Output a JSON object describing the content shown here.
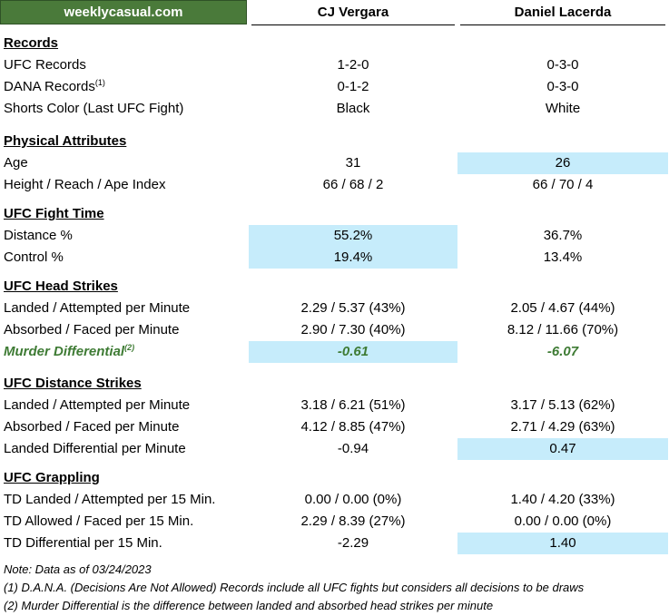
{
  "brand": "weeklycasual.com",
  "fighters": [
    "CJ Vergara",
    "Daniel Lacerda"
  ],
  "sections": [
    {
      "title": "Records",
      "rows": [
        {
          "label": "UFC Records",
          "a": "1-2-0",
          "b": "0-3-0"
        },
        {
          "label": "DANA Records",
          "sup": "(1)",
          "a": "0-1-2",
          "b": "0-3-0"
        },
        {
          "label": "Shorts Color (Last UFC Fight)",
          "a": "Black",
          "b": "White"
        }
      ]
    },
    {
      "title": "Physical Attributes",
      "rows": [
        {
          "label": "Age",
          "a": "31",
          "b": "26",
          "highlight": "b"
        },
        {
          "label": "Height / Reach / Ape Index",
          "a": "66 / 68 / 2",
          "b": "66 / 70 / 4"
        }
      ]
    },
    {
      "title": "UFC Fight Time",
      "rows": [
        {
          "label": "Distance %",
          "a": "55.2%",
          "b": "36.7%",
          "highlight": "a"
        },
        {
          "label": "Control %",
          "a": "19.4%",
          "b": "13.4%",
          "highlight": "a"
        }
      ]
    },
    {
      "title": "UFC Head Strikes",
      "rows": [
        {
          "label": "Landed / Attempted per Minute",
          "a": "2.29 / 5.37 (43%)",
          "b": "2.05 / 4.67 (44%)"
        },
        {
          "label": "Absorbed / Faced per Minute",
          "a": "2.90 / 7.30 (40%)",
          "b": "8.12 / 11.66 (70%)"
        },
        {
          "label": "Murder Differential",
          "sup": "(2)",
          "a": "-0.61",
          "b": "-6.07",
          "highlight": "a",
          "style": "murder"
        }
      ]
    },
    {
      "title": "UFC Distance Strikes",
      "rows": [
        {
          "label": "Landed / Attempted per Minute",
          "a": "3.18 / 6.21 (51%)",
          "b": "3.17 / 5.13 (62%)"
        },
        {
          "label": "Absorbed / Faced per Minute",
          "a": "4.12 / 8.85 (47%)",
          "b": "2.71 / 4.29 (63%)"
        },
        {
          "label": "Landed Differential per Minute",
          "a": "-0.94",
          "b": "0.47",
          "highlight": "b"
        }
      ]
    },
    {
      "title": "UFC Grappling",
      "rows": [
        {
          "label": "TD Landed / Attempted per 15 Min.",
          "a": "0.00 / 0.00 (0%)",
          "b": "1.40 / 4.20 (33%)"
        },
        {
          "label": "TD Allowed / Faced per 15 Min.",
          "a": "2.29 / 8.39 (27%)",
          "b": "0.00 / 0.00 (0%)"
        },
        {
          "label": "TD Differential per 15 Min.",
          "a": "-2.29",
          "b": "1.40",
          "highlight": "b"
        }
      ]
    }
  ],
  "notes": [
    "Note: Data as of 03/24/2023",
    "(1) D.A.N.A. (Decisions Are Not Allowed) Records include all UFC fights but considers all decisions to be draws",
    "(2) Murder Differential is the difference between landed and absorbed head strikes per minute"
  ],
  "colors": {
    "brand_bg": "#4a7a3a",
    "highlight": "#c6ecfb",
    "murder_text": "#3e7b34"
  }
}
